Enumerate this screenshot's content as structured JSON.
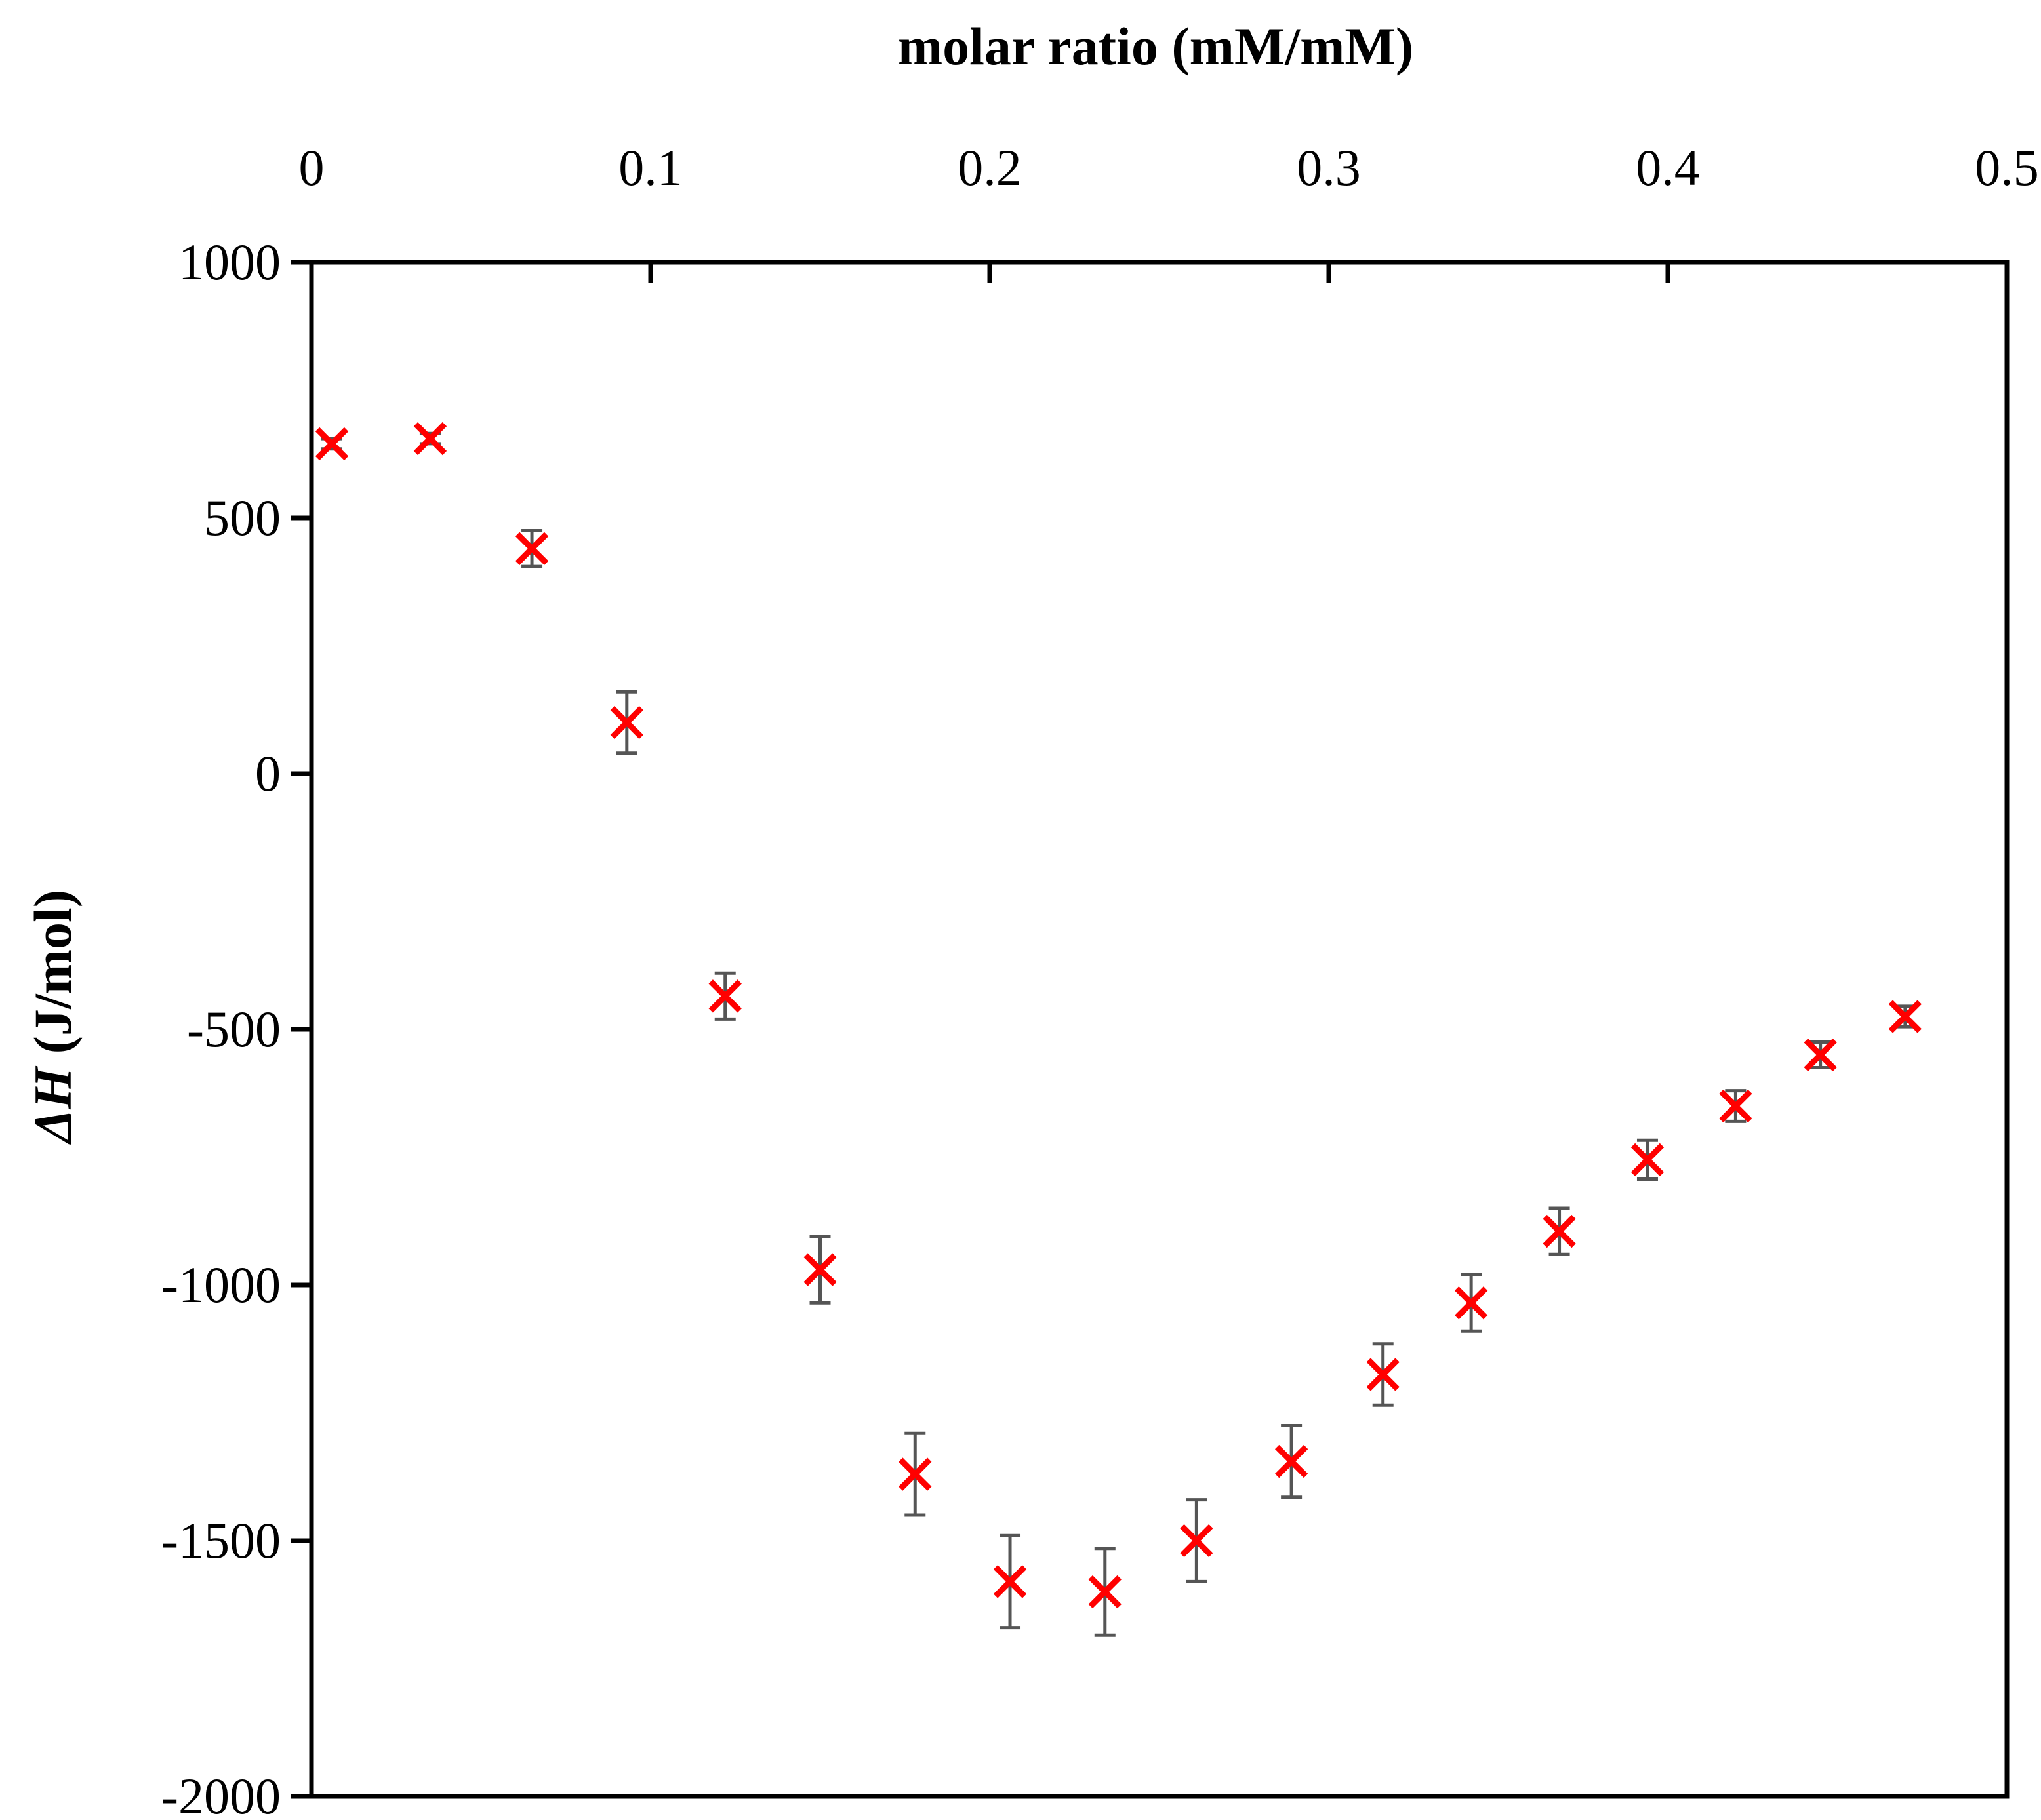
{
  "chart_data": {
    "type": "scatter",
    "title": "",
    "xlabel": "molar ratio (mM/mM)",
    "ylabel_symbol": "ΔH",
    "ylabel_unit": " (J/mol)",
    "xlim": [
      0,
      0.5
    ],
    "ylim": [
      -2000,
      1000
    ],
    "x_axis_position": "top",
    "x_ticks": [
      0,
      0.1,
      0.2,
      0.3,
      0.4,
      0.5
    ],
    "x_tick_labels": [
      "0",
      "0.1",
      "0.2",
      "0.3",
      "0.4",
      "0.5"
    ],
    "y_ticks": [
      1000,
      500,
      0,
      -500,
      -1000,
      -1500,
      -2000
    ],
    "y_tick_labels": [
      "1000",
      "500",
      "0",
      "-500",
      "-1000",
      "-1500",
      "-2000"
    ],
    "grid": false,
    "marker": "x",
    "marker_color": "#ff0000",
    "errorbar_color": "#555555",
    "series": [
      {
        "name": "ΔH",
        "x": [
          0.006,
          0.035,
          0.065,
          0.093,
          0.122,
          0.15,
          0.178,
          0.206,
          0.234,
          0.261,
          0.289,
          0.316,
          0.342,
          0.368,
          0.394,
          0.42,
          0.445,
          0.47
        ],
        "y": [
          645,
          655,
          440,
          100,
          -435,
          -970,
          -1370,
          -1580,
          -1600,
          -1500,
          -1345,
          -1175,
          -1035,
          -895,
          -755,
          -650,
          -550,
          -475
        ],
        "error": [
          10,
          10,
          35,
          60,
          45,
          65,
          80,
          90,
          85,
          80,
          70,
          60,
          55,
          45,
          38,
          30,
          25,
          20
        ]
      }
    ]
  }
}
